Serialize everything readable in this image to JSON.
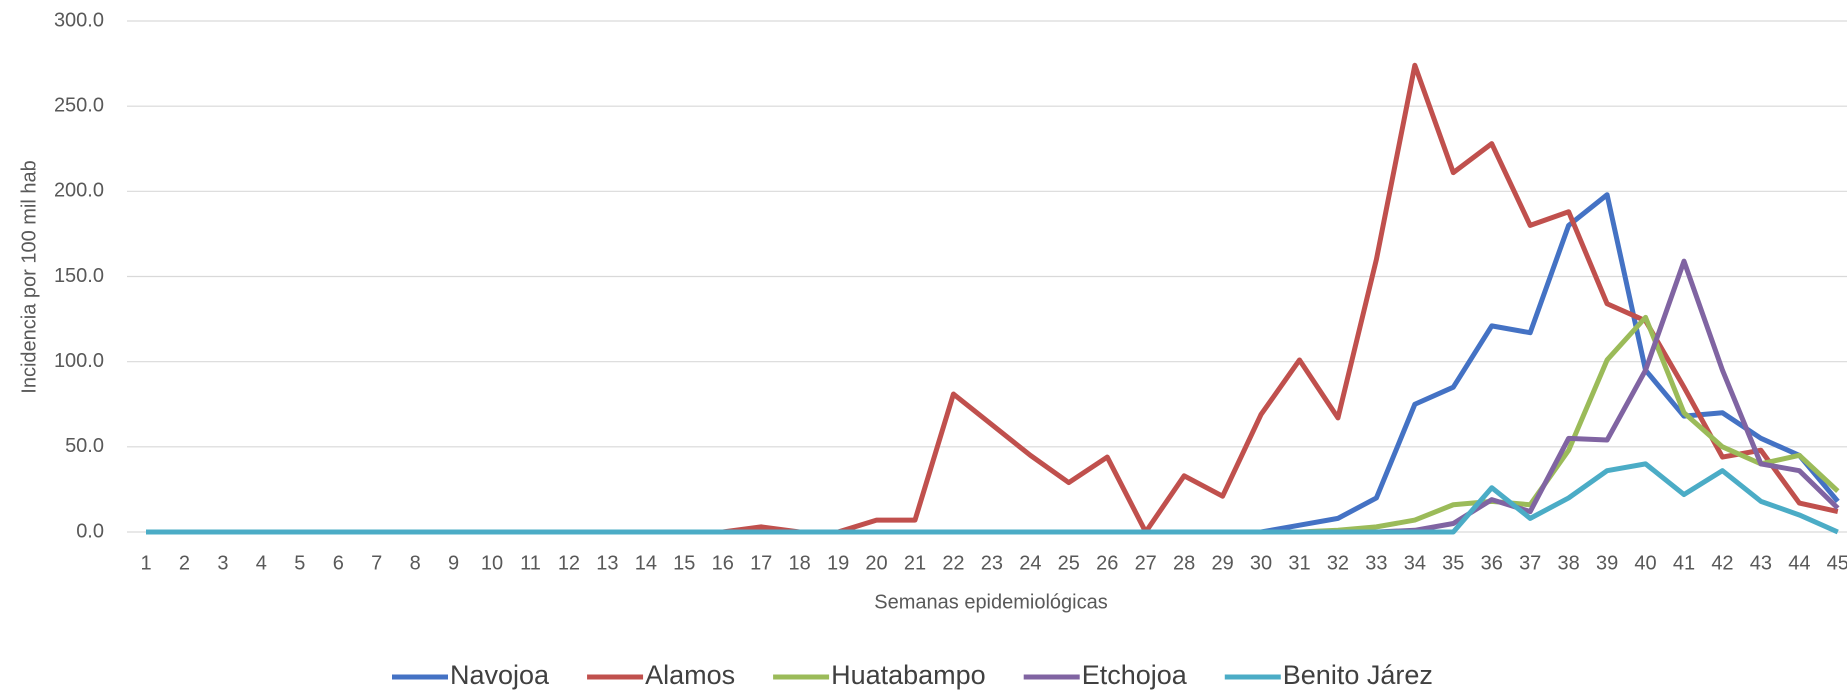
{
  "chart_data": {
    "type": "line",
    "x_label": "Semanas epidemiológicas",
    "y_label": "Incidencia por 100 mil hab",
    "categories": [
      "1",
      "2",
      "3",
      "4",
      "5",
      "6",
      "7",
      "8",
      "9",
      "10",
      "11",
      "12",
      "13",
      "14",
      "15",
      "16",
      "17",
      "18",
      "19",
      "20",
      "21",
      "22",
      "23",
      "24",
      "25",
      "26",
      "27",
      "28",
      "29",
      "30",
      "31",
      "32",
      "33",
      "34",
      "35",
      "36",
      "37",
      "38",
      "39",
      "40",
      "41",
      "42",
      "43",
      "44",
      "45"
    ],
    "series": [
      {
        "name": "Navojoa",
        "color": "#4472c4",
        "values": [
          0,
          0,
          0,
          0,
          0,
          0,
          0,
          0,
          0,
          0,
          0,
          0,
          0,
          0,
          0,
          0,
          0,
          0,
          0,
          0,
          0,
          0,
          0,
          0,
          0,
          0,
          0,
          0,
          0,
          0,
          4,
          8,
          20,
          75,
          85,
          121,
          117,
          180,
          198,
          95,
          68,
          70,
          55,
          45,
          18
        ]
      },
      {
        "name": "Alamos",
        "color": "#c0504d",
        "values": [
          0,
          0,
          0,
          0,
          0,
          0,
          0,
          0,
          0,
          0,
          0,
          0,
          0,
          0,
          0,
          0,
          3,
          0,
          0,
          7,
          7,
          81,
          63,
          45,
          29,
          44,
          0,
          33,
          21,
          69,
          101,
          67,
          160,
          274,
          211,
          228,
          180,
          188,
          134,
          124,
          85,
          44,
          48,
          17,
          12
        ]
      },
      {
        "name": "Huatabampo",
        "color": "#9bbb59",
        "values": [
          0,
          0,
          0,
          0,
          0,
          0,
          0,
          0,
          0,
          0,
          0,
          0,
          0,
          0,
          0,
          0,
          0,
          0,
          0,
          0,
          0,
          0,
          0,
          0,
          0,
          0,
          0,
          0,
          0,
          0,
          0,
          1,
          3,
          7,
          16,
          18,
          16,
          48,
          101,
          126,
          70,
          50,
          40,
          45,
          24
        ]
      },
      {
        "name": "Etchojoa",
        "color": "#8064a2",
        "values": [
          0,
          0,
          0,
          0,
          0,
          0,
          0,
          0,
          0,
          0,
          0,
          0,
          0,
          0,
          0,
          0,
          0,
          0,
          0,
          0,
          0,
          0,
          0,
          0,
          0,
          0,
          0,
          0,
          0,
          0,
          0,
          0,
          0,
          1,
          5,
          19,
          12,
          55,
          54,
          95,
          159,
          95,
          40,
          36,
          14
        ]
      },
      {
        "name": "Benito Járez",
        "color": "#4bacc6",
        "values": [
          0,
          0,
          0,
          0,
          0,
          0,
          0,
          0,
          0,
          0,
          0,
          0,
          0,
          0,
          0,
          0,
          0,
          0,
          0,
          0,
          0,
          0,
          0,
          0,
          0,
          0,
          0,
          0,
          0,
          0,
          0,
          0,
          0,
          0,
          0,
          26,
          8,
          20,
          36,
          40,
          22,
          36,
          18,
          10,
          0
        ]
      }
    ],
    "ylim": [
      0,
      300
    ],
    "yticks": [
      {
        "value": 0,
        "label": "0.0"
      },
      {
        "value": 50,
        "label": "50.0"
      },
      {
        "value": 100,
        "label": "100.0"
      },
      {
        "value": 150,
        "label": "150.0"
      },
      {
        "value": 200,
        "label": "200.0"
      },
      {
        "value": 250,
        "label": "250.0"
      },
      {
        "value": 300,
        "label": "300.0"
      }
    ],
    "grid": true,
    "legend": "bottom"
  }
}
